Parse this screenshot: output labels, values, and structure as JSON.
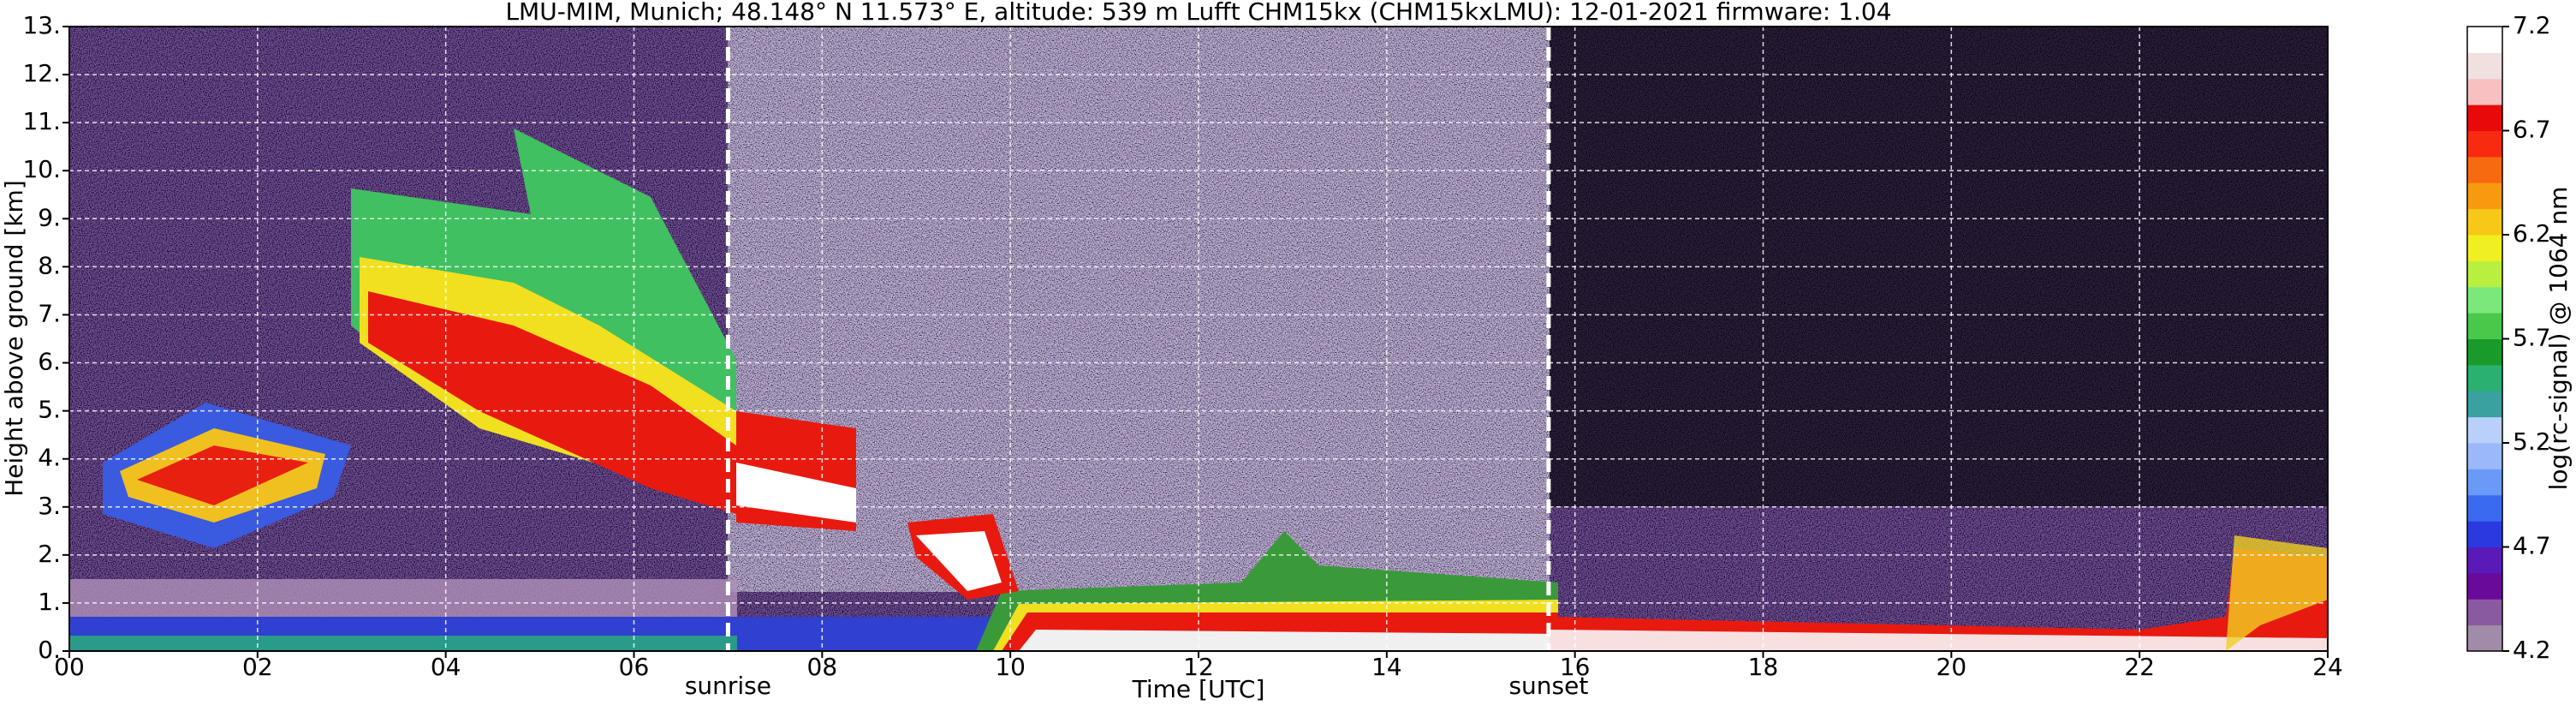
{
  "chart_data": {
    "type": "heatmap",
    "title": "LMU-MIM, Munich; 48.148° N 11.573° E, altitude: 539 m    Lufft CHM15kx (CHM15kxLMU): 12-01-2021    firmware: 1.04",
    "xlabel": "Time [UTC]",
    "ylabel": "Height above ground [km]",
    "xlim": [
      0,
      24
    ],
    "xticks": [
      {
        "value": 0,
        "label": "00"
      },
      {
        "value": 2,
        "label": "02"
      },
      {
        "value": 4,
        "label": "04"
      },
      {
        "value": 6,
        "label": "06"
      },
      {
        "value": 8,
        "label": "08"
      },
      {
        "value": 10,
        "label": "10"
      },
      {
        "value": 12,
        "label": "12"
      },
      {
        "value": 14,
        "label": "14"
      },
      {
        "value": 16,
        "label": "16"
      },
      {
        "value": 18,
        "label": "18"
      },
      {
        "value": 20,
        "label": "20"
      },
      {
        "value": 22,
        "label": "22"
      },
      {
        "value": 24,
        "label": "24"
      }
    ],
    "ylim": [
      0,
      13
    ],
    "yticks": [
      {
        "value": 0,
        "label": "0."
      },
      {
        "value": 1,
        "label": "1."
      },
      {
        "value": 2,
        "label": "2."
      },
      {
        "value": 3,
        "label": "3."
      },
      {
        "value": 4,
        "label": "4."
      },
      {
        "value": 5,
        "label": "5."
      },
      {
        "value": 6,
        "label": "6."
      },
      {
        "value": 7,
        "label": "7."
      },
      {
        "value": 8,
        "label": "8."
      },
      {
        "value": 9,
        "label": "9."
      },
      {
        "value": 10,
        "label": "10."
      },
      {
        "value": 11,
        "label": "11."
      },
      {
        "value": 12,
        "label": "12."
      },
      {
        "value": 13,
        "label": "13."
      }
    ],
    "grid": true,
    "annotations": [
      {
        "label": "sunrise",
        "x": 7.0
      },
      {
        "label": "sunset",
        "x": 15.72
      }
    ],
    "colorbar": {
      "label": "log(rc-signal) @ 1064 nm",
      "lim": [
        4.2,
        7.2
      ],
      "ticks": [
        4.2,
        4.7,
        5.2,
        5.7,
        6.2,
        6.7,
        7.2
      ],
      "colors": [
        "#a08ca8",
        "#8a5aa0",
        "#6a0a9a",
        "#5a1ab8",
        "#2a3ae0",
        "#3a6af0",
        "#6a9af8",
        "#9ab8fa",
        "#b8d0fa",
        "#3aa0a0",
        "#2ab070",
        "#1a9a2a",
        "#4ac84a",
        "#7ae87a",
        "#b8f040",
        "#f0f020",
        "#f8c818",
        "#f89a10",
        "#f86a10",
        "#f82a10",
        "#e80a0a",
        "#f8c0c0",
        "#f0e0e0",
        "#ffffff"
      ]
    }
  }
}
